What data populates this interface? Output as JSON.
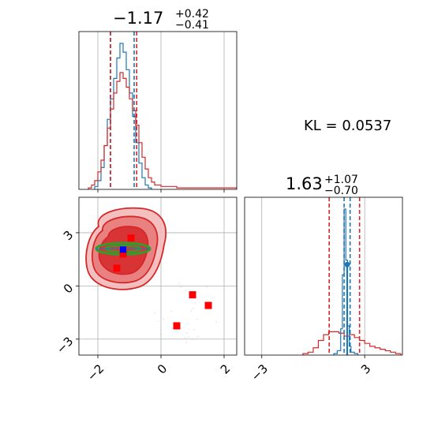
{
  "chart_data": [
    {
      "type": "step-histogram",
      "panel": "marginal-param-1",
      "title": {
        "value": "−1.17",
        "upper": "+0.42",
        "lower": "−0.41"
      },
      "xlim": [
        -2.6,
        2.4
      ],
      "grid": true,
      "series": [
        {
          "color": "#1f77b4",
          "bin_edges": [
            -2.1,
            -2.0,
            -1.9,
            -1.8,
            -1.7,
            -1.6,
            -1.5,
            -1.4,
            -1.3,
            -1.2,
            -1.1,
            -1.0,
            -0.9,
            -0.8,
            -0.7,
            -0.6,
            -0.5,
            -0.4,
            -0.3
          ],
          "heights": [
            0.02,
            0.06,
            0.15,
            0.3,
            0.48,
            0.62,
            0.76,
            0.9,
            1.0,
            0.94,
            0.82,
            0.66,
            0.5,
            0.32,
            0.18,
            0.08,
            0.03,
            0.01
          ]
        },
        {
          "color": "#d62728",
          "bin_edges": [
            -2.3,
            -2.2,
            -2.1,
            -2.0,
            -1.9,
            -1.8,
            -1.7,
            -1.6,
            -1.5,
            -1.4,
            -1.3,
            -1.2,
            -1.1,
            -1.0,
            -0.9,
            -0.8,
            -0.7,
            -0.6,
            -0.5,
            -0.4,
            -0.3,
            -0.2,
            0.0,
            0.5,
            1.0,
            1.5,
            2.0,
            2.4
          ],
          "heights": [
            0.01,
            0.03,
            0.06,
            0.12,
            0.2,
            0.3,
            0.42,
            0.55,
            0.66,
            0.74,
            0.8,
            0.76,
            0.7,
            0.62,
            0.54,
            0.44,
            0.32,
            0.22,
            0.14,
            0.08,
            0.05,
            0.03,
            0.02,
            0.01,
            0.01,
            0.01,
            0.01
          ]
        }
      ],
      "quantile_lines": [
        {
          "color": "#1f77b4",
          "x": [
            -1.6,
            -0.85
          ]
        },
        {
          "color": "#d62728",
          "x": [
            -1.6,
            -0.77
          ]
        }
      ]
    },
    {
      "type": "contour-scatter",
      "panel": "joint",
      "xlim": [
        -2.6,
        2.4
      ],
      "ylim": [
        -3.9,
        5.0
      ],
      "xticks": [
        "−2",
        "0",
        "2"
      ],
      "xtick_values": [
        -2,
        0,
        2
      ],
      "yticks": [
        "−3",
        "0",
        "3"
      ],
      "ytick_values": [
        -3,
        0,
        3
      ],
      "grid": true,
      "red_markers": [
        [
          -0.95,
          2.7
        ],
        [
          -1.2,
          1.8
        ],
        [
          -1.4,
          1.0
        ],
        [
          1.0,
          -0.5
        ],
        [
          1.5,
          -1.1
        ],
        [
          0.5,
          -2.25
        ]
      ],
      "blue_marker": [
        -1.2,
        2.05
      ],
      "green_ellipse": {
        "cx": -1.2,
        "cy": 2.1,
        "rx": 0.85,
        "ry": 0.32
      }
    },
    {
      "type": "step-histogram",
      "panel": "marginal-param-2",
      "title": {
        "value": "1.63",
        "upper": "+1.07",
        "lower": "−0.70"
      },
      "xlim": [
        -4.0,
        5.2
      ],
      "xticks": [
        "−3",
        "3"
      ],
      "xtick_values": [
        -3,
        3
      ],
      "grid": true,
      "series": [
        {
          "color": "#d62728",
          "bin_edges": [
            -0.6,
            -0.3,
            0.0,
            0.3,
            0.6,
            0.9,
            1.2,
            1.5,
            1.8,
            2.1,
            2.4,
            2.7,
            3.0,
            3.3,
            3.6,
            3.9,
            4.2,
            4.5,
            4.8,
            5.1
          ],
          "heights": [
            0.01,
            0.02,
            0.05,
            0.1,
            0.14,
            0.16,
            0.16,
            0.15,
            0.13,
            0.14,
            0.12,
            0.1,
            0.08,
            0.06,
            0.05,
            0.04,
            0.03,
            0.02,
            0.01
          ]
        },
        {
          "color": "#1f77b4",
          "bin_edges": [
            1.2,
            1.4,
            1.6,
            1.7,
            1.8,
            1.9,
            2.0,
            2.1,
            2.2,
            2.4,
            2.6
          ],
          "heights": [
            0.01,
            0.03,
            0.18,
            0.55,
            1.0,
            0.65,
            0.2,
            0.06,
            0.02,
            0.01
          ]
        }
      ],
      "quantile_lines": [
        {
          "color": "#1f77b4",
          "x": [
            1.8,
            2.15
          ]
        },
        {
          "color": "#d62728",
          "x": [
            0.93,
            2.7
          ]
        }
      ],
      "marker": {
        "color": "#1f77b4",
        "x": 1.98,
        "y": 0.62
      }
    }
  ],
  "annotation": {
    "kl_label": "KL = 0.0537"
  }
}
